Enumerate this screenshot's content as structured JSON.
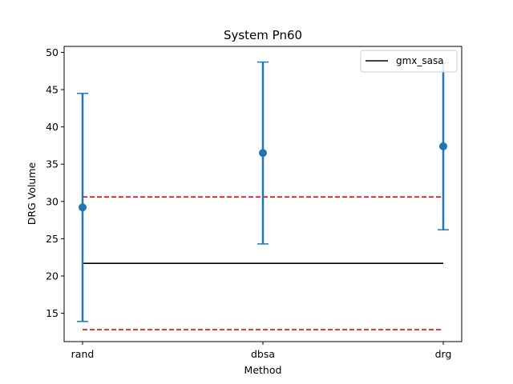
{
  "chart_data": {
    "type": "errorbar",
    "title": "System Pn60",
    "xlabel": "Method",
    "ylabel": "DRG Volume",
    "categories": [
      "rand",
      "dbsa",
      "drg"
    ],
    "series": [
      {
        "type": "errorbar",
        "color": "#1f77b4",
        "values": [
          29.2,
          36.5,
          37.4
        ],
        "lower": [
          13.9,
          24.3,
          26.2
        ],
        "upper": [
          44.5,
          48.7,
          48.6
        ]
      }
    ],
    "reference_lines": [
      {
        "name": "gmx_sasa",
        "value": 21.7,
        "color": "#000000",
        "style": "solid"
      },
      {
        "value": 30.6,
        "color": "#ff0000",
        "style": "dashed"
      },
      {
        "value": 12.8,
        "color": "#ff0000",
        "style": "dashed"
      }
    ],
    "ylim": [
      11.2,
      50.8
    ],
    "yticks": [
      15,
      20,
      25,
      30,
      35,
      40,
      45,
      50
    ],
    "legend": {
      "position": "top-right",
      "entries": [
        "gmx_sasa"
      ]
    },
    "grid": false
  }
}
